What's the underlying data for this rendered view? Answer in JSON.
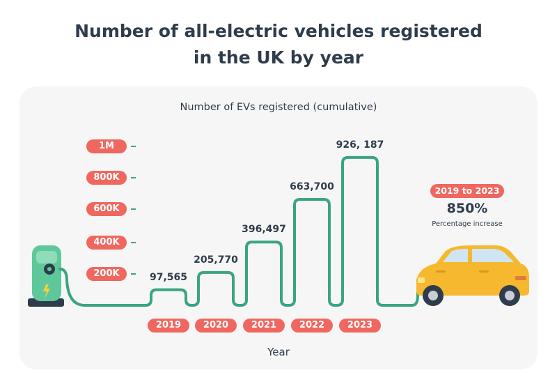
{
  "title": "Number of all-electric vehicles registered in the UK by year",
  "chart_data": {
    "type": "bar",
    "title": "Number of all-electric vehicles registered in the UK by year",
    "subtitle": "Number of EVs registered (cumulative)",
    "xlabel": "Year",
    "ylabel": "",
    "categories": [
      "2019",
      "2020",
      "2021",
      "2022",
      "2023"
    ],
    "values": [
      97565,
      205770,
      396497,
      663700,
      926187
    ],
    "value_labels": [
      "97,565",
      "205,770",
      "396,497",
      "663,700",
      "926, 187"
    ],
    "y_ticks": [
      {
        "value": 1000000,
        "label": "1M"
      },
      {
        "value": 800000,
        "label": "800K"
      },
      {
        "value": 600000,
        "label": "600K"
      },
      {
        "value": 400000,
        "label": "400K"
      },
      {
        "value": 200000,
        "label": "200K"
      }
    ],
    "ylim": [
      0,
      1000000
    ],
    "grid": false,
    "annotation": {
      "badge": "2019 to 2023",
      "value": "850%",
      "caption": "Percentage increase"
    }
  },
  "colors": {
    "line": "#3aa57f",
    "badge": "#f0675f",
    "text": "#2f3c4b",
    "panel": "#f6f6f6",
    "car_body": "#f5b82e",
    "charger_body": "#5ec89a"
  },
  "icons": [
    "ev-charger-icon",
    "electric-car-icon"
  ]
}
